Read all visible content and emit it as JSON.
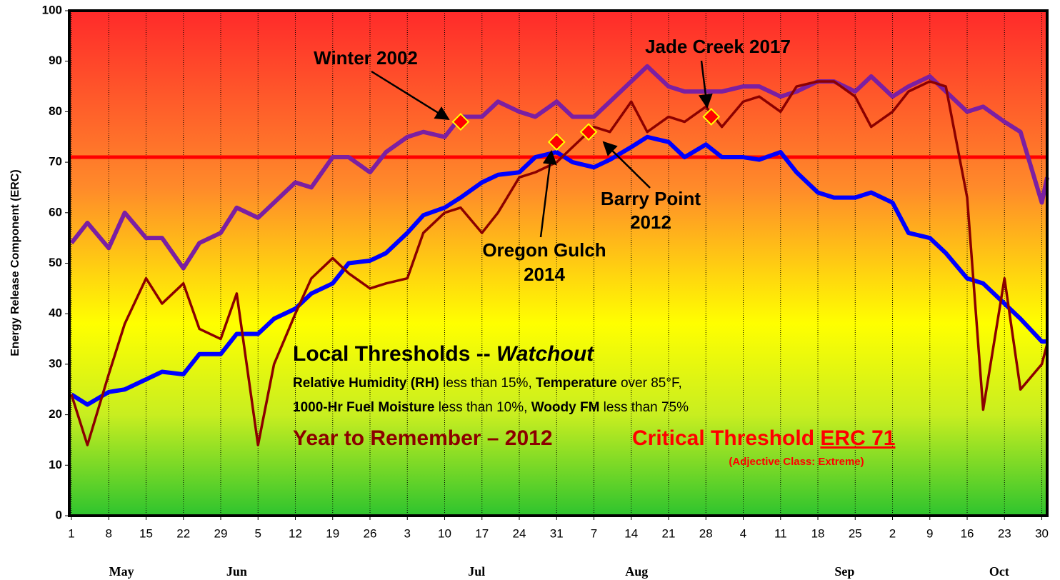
{
  "chart_data": {
    "type": "line",
    "y_label": "Energy Release Component (ERC)",
    "x": [
      0,
      3,
      7,
      10,
      14,
      17,
      21,
      24,
      28,
      31,
      35,
      38,
      42,
      45,
      49,
      52,
      56,
      59,
      63,
      66,
      70,
      73,
      77,
      80,
      84,
      87,
      91,
      94,
      98,
      101,
      105,
      108,
      112,
      115,
      119,
      122,
      126,
      129,
      133,
      136,
      140,
      143,
      147,
      150,
      154,
      157,
      161,
      164,
      168,
      171,
      175,
      178,
      182,
      183
    ],
    "series": [
      {
        "color": "#0000ff",
        "values": [
          24,
          22,
          24.5,
          25,
          27,
          28.5,
          28,
          32,
          32,
          36,
          36,
          39,
          41,
          44,
          46,
          50,
          50.5,
          52,
          56,
          59.5,
          61,
          63,
          66,
          67.5,
          68,
          71,
          72,
          70,
          69,
          70.5,
          73,
          75,
          74,
          71,
          73.5,
          71,
          71,
          70.5,
          72,
          68,
          64,
          63,
          63,
          64,
          62,
          56,
          55,
          52,
          47,
          46,
          42,
          39,
          34.5,
          34.5
        ]
      },
      {
        "color": "#7b1fa2",
        "values": [
          54,
          58,
          53,
          60,
          55,
          55,
          49,
          54,
          56,
          61,
          59,
          62,
          66,
          65,
          71,
          71,
          68,
          72,
          75,
          76,
          75,
          79,
          79,
          82,
          80,
          79,
          82,
          79,
          79,
          82,
          86,
          89,
          85,
          84,
          84,
          84,
          85,
          85,
          83,
          84,
          86,
          86,
          84,
          87,
          83,
          85,
          87,
          84,
          80,
          81,
          78,
          76,
          62,
          67
        ]
      },
      {
        "color": "#8b0000",
        "values": [
          24,
          14,
          28,
          38,
          47,
          42,
          46,
          37,
          35,
          44,
          14,
          30,
          40,
          47,
          51,
          48,
          45,
          46,
          47,
          56,
          60,
          61,
          56,
          60,
          67,
          68,
          70,
          73,
          77,
          76,
          82,
          76,
          79,
          78,
          81,
          77,
          82,
          83,
          80,
          85,
          86,
          86,
          83,
          77,
          80,
          84,
          86,
          85,
          63,
          21,
          47,
          25,
          30,
          34
        ]
      }
    ],
    "xlim": [
      -0.4,
      183
    ],
    "xticks": [
      {
        "value": 0,
        "label": "1"
      },
      {
        "value": 7,
        "label": "8"
      },
      {
        "value": 14,
        "label": "15"
      },
      {
        "value": 21,
        "label": "22"
      },
      {
        "value": 28,
        "label": "29"
      },
      {
        "value": 35,
        "label": "5"
      },
      {
        "value": 42,
        "label": "12"
      },
      {
        "value": 49,
        "label": "19"
      },
      {
        "value": 56,
        "label": "26"
      },
      {
        "value": 63,
        "label": "3"
      },
      {
        "value": 70,
        "label": "10"
      },
      {
        "value": 77,
        "label": "17"
      },
      {
        "value": 84,
        "label": "24"
      },
      {
        "value": 91,
        "label": "31"
      },
      {
        "value": 98,
        "label": "7"
      },
      {
        "value": 105,
        "label": "14"
      },
      {
        "value": 112,
        "label": "21"
      },
      {
        "value": 119,
        "label": "28"
      },
      {
        "value": 126,
        "label": "4"
      },
      {
        "value": 133,
        "label": "11"
      },
      {
        "value": 140,
        "label": "18"
      },
      {
        "value": 147,
        "label": "25"
      },
      {
        "value": 154,
        "label": "2"
      },
      {
        "value": 161,
        "label": "9"
      },
      {
        "value": 168,
        "label": "16"
      },
      {
        "value": 175,
        "label": "23"
      },
      {
        "value": 182,
        "label": "30"
      }
    ],
    "months": [
      {
        "value": 9.4,
        "label": "May"
      },
      {
        "value": 31,
        "label": "Jun"
      },
      {
        "value": 76,
        "label": "Jul"
      },
      {
        "value": 106,
        "label": "Aug"
      },
      {
        "value": 145,
        "label": "Sep"
      },
      {
        "value": 174,
        "label": "Oct"
      }
    ],
    "ylim": [
      0,
      100
    ],
    "yticks": [
      0,
      10,
      20,
      30,
      40,
      50,
      60,
      70,
      80,
      90,
      100
    ],
    "grid": true,
    "threshold": {
      "value": 71,
      "color": "#ff0000"
    },
    "markers": [
      {
        "lines": [
          "Winter 2002"
        ],
        "x": 73,
        "y": 78
      },
      {
        "lines": [
          "Oregon Gulch",
          "2014"
        ],
        "x": 91,
        "y": 74
      },
      {
        "lines": [
          "Barry Point",
          "2012"
        ],
        "x": 97,
        "y": 76
      },
      {
        "lines": [
          "Jade Creek 2017"
        ],
        "x": 120,
        "y": 79
      }
    ],
    "notes": {
      "heading": "Local Thresholds -- ",
      "heading_em": "Watchout",
      "line1": [
        "Relative Humidity (RH)",
        " less than 15%, ",
        "Temperature",
        " over 85°F,"
      ],
      "line2": [
        "1000-Hr Fuel Moisture",
        " less than 10%, ",
        "Woody FM",
        " less than 75%"
      ],
      "year": "Year to Remember – 2012",
      "critical": "Critical Threshold ",
      "critical_erc": "ERC 71",
      "adjective": "(Adjective Class: Extreme)"
    }
  }
}
